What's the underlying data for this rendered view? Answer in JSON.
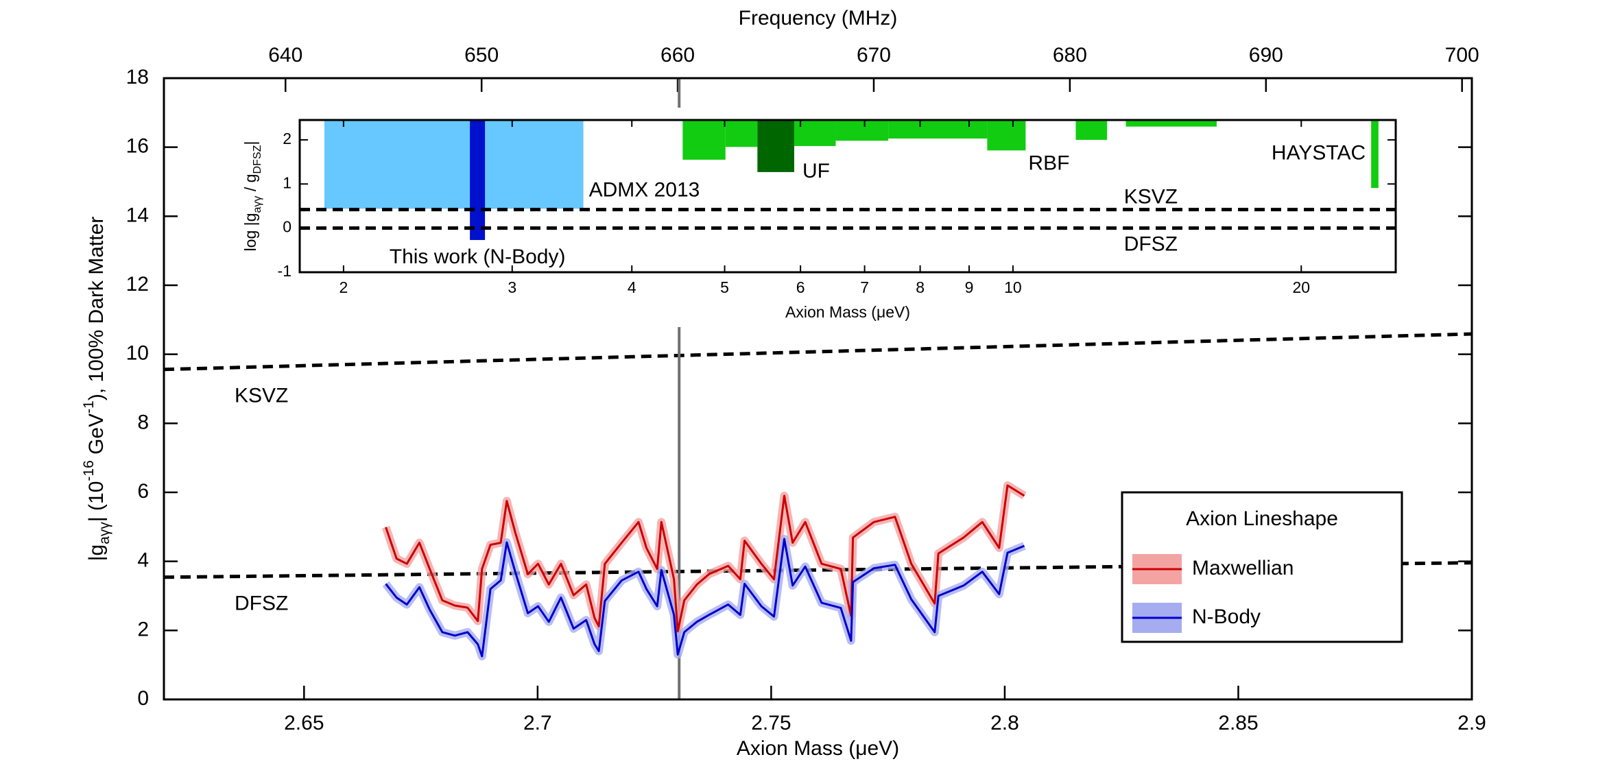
{
  "chart_data": [
    {
      "type": "line",
      "x_label": "Axion Mass (μeV)",
      "y_label": [
        "|g",
        "aγγ",
        "| (10",
        "-16",
        " GeV",
        "-1",
        "), 100% Dark Matter"
      ],
      "x2_label": "Frequency (MHz)",
      "xlim": [
        2.62,
        2.9
      ],
      "xticks": [
        2.65,
        2.7,
        2.75,
        2.8,
        2.85,
        2.9
      ],
      "x2lim": [
        633.8,
        700.5
      ],
      "x2ticks": [
        640,
        650,
        660,
        670,
        680,
        690,
        700
      ],
      "ylim": [
        0,
        18
      ],
      "yticks": [
        0,
        2,
        4,
        6,
        8,
        10,
        12,
        14,
        16,
        18
      ],
      "legend_title": "Axion Lineshape",
      "legend_position": "lower right",
      "x": [
        2.6675,
        2.6698,
        2.672,
        2.6747,
        2.6769,
        2.6796,
        2.6823,
        2.685,
        2.6872,
        2.6881,
        2.6899,
        2.6921,
        2.6934,
        2.6952,
        2.6979,
        2.7001,
        2.7024,
        2.705,
        2.7077,
        2.7104,
        2.7122,
        2.7131,
        2.7144,
        2.718,
        2.7216,
        2.7233,
        2.7256,
        2.7265,
        2.7292,
        2.73,
        2.7314,
        2.7341,
        2.7367,
        2.7408,
        2.7434,
        2.7443,
        2.7479,
        2.7506,
        2.7528,
        2.7546,
        2.7573,
        2.7608,
        2.7649,
        2.7671,
        2.7675,
        2.772,
        2.7765,
        2.78,
        2.785,
        2.7858,
        2.7912,
        2.7952,
        2.7988,
        2.8006,
        2.8042
      ],
      "series": [
        {
          "name": "Maxwellian",
          "color": "#cc0000",
          "band_color": "#f4a3a3",
          "values": [
            4.99,
            4.08,
            3.93,
            4.54,
            3.78,
            2.87,
            2.72,
            2.66,
            2.27,
            3.78,
            4.48,
            4.54,
            5.75,
            4.84,
            3.63,
            3.93,
            3.33,
            3.93,
            3.02,
            3.33,
            2.36,
            2.12,
            3.93,
            4.54,
            5.14,
            4.39,
            3.78,
            5.14,
            3.48,
            1.97,
            2.87,
            3.33,
            3.63,
            3.87,
            3.48,
            4.6,
            3.93,
            3.48,
            5.9,
            4.54,
            5.14,
            3.93,
            3.78,
            2.42,
            4.69,
            5.14,
            5.29,
            3.93,
            2.78,
            4.23,
            4.69,
            5.14,
            4.39,
            6.2,
            5.9
          ]
        },
        {
          "name": "N-Body",
          "color": "#0000cc",
          "band_color": "#a6acf0",
          "values": [
            3.35,
            2.95,
            2.75,
            3.25,
            2.6,
            1.95,
            1.85,
            1.95,
            1.6,
            1.25,
            3.2,
            3.45,
            4.55,
            3.7,
            2.5,
            2.7,
            2.25,
            2.95,
            2.05,
            2.3,
            1.6,
            1.4,
            2.85,
            3.45,
            3.7,
            3.2,
            2.7,
            3.75,
            2.45,
            1.3,
            1.95,
            2.25,
            2.45,
            2.75,
            2.45,
            3.35,
            2.7,
            2.4,
            4.65,
            3.3,
            3.85,
            2.8,
            2.65,
            1.7,
            3.4,
            3.8,
            3.9,
            2.9,
            1.95,
            3.0,
            3.3,
            3.7,
            3.05,
            4.25,
            4.45
          ]
        }
      ],
      "models": [
        {
          "label": "KSVZ",
          "x": [
            2.62,
            2.9
          ],
          "values": [
            9.56,
            10.59
          ]
        },
        {
          "label": "DFSZ",
          "x": [
            2.62,
            2.9
          ],
          "values": [
            3.54,
            3.96
          ]
        }
      ],
      "marker_x": 2.7303
    },
    {
      "type": "exclusion",
      "x_label": "Axion Mass (μeV)",
      "y_label": [
        "log |g",
        "aγγ",
        " / g",
        "DFSZ",
        "|"
      ],
      "log_x": true,
      "xlim": [
        1.8,
        25.1
      ],
      "xticks": [
        2,
        3,
        4,
        5,
        6,
        7,
        8,
        9,
        10,
        20
      ],
      "ylim": [
        -1,
        2.45
      ],
      "yticks": [
        -1,
        0,
        1,
        2
      ],
      "regions": [
        {
          "label": "ADMX 2013",
          "color": "#66c8ff",
          "x": [
            1.91,
            3.56
          ],
          "y": [
            0.44,
            2.45
          ]
        },
        {
          "label": "This work (N-Body)",
          "color": "#0010cc",
          "x": [
            2.71,
            2.81
          ],
          "y": [
            -0.27,
            2.45
          ]
        },
        {
          "color": "#11cc11",
          "x": [
            4.52,
            5.01
          ],
          "y": [
            1.55,
            2.45
          ]
        },
        {
          "color": "#11cc11",
          "x": [
            5.01,
            5.41
          ],
          "y": [
            1.84,
            2.45
          ]
        },
        {
          "label": "UF",
          "color": "#006600",
          "x": [
            5.41,
            5.91
          ],
          "y": [
            1.27,
            2.45
          ]
        },
        {
          "color": "#11cc11",
          "x": [
            5.91,
            6.53
          ],
          "y": [
            1.86,
            2.45
          ]
        },
        {
          "color": "#11cc11",
          "x": [
            6.53,
            7.41
          ],
          "y": [
            1.98,
            2.45
          ]
        },
        {
          "color": "#11cc11",
          "x": [
            7.41,
            9.4
          ],
          "y": [
            2.03,
            2.45
          ]
        },
        {
          "label": "RBF",
          "color": "#11cc11",
          "x": [
            9.4,
            10.31
          ],
          "y": [
            1.76,
            2.45
          ]
        },
        {
          "color": "#11cc11",
          "x": [
            11.63,
            12.54
          ],
          "y": [
            2.0,
            2.45
          ]
        },
        {
          "color": "#11cc11",
          "x": [
            13.12,
            16.32
          ],
          "y": [
            2.3,
            2.45
          ]
        },
        {
          "label": "HAYSTAC",
          "color": "#11cc11",
          "x": [
            23.66,
            24.08
          ],
          "y": [
            0.91,
            2.45
          ]
        }
      ],
      "lines": [
        {
          "label": "KSVZ",
          "y": 0.42
        },
        {
          "label": "DFSZ",
          "y": 0
        }
      ]
    }
  ]
}
